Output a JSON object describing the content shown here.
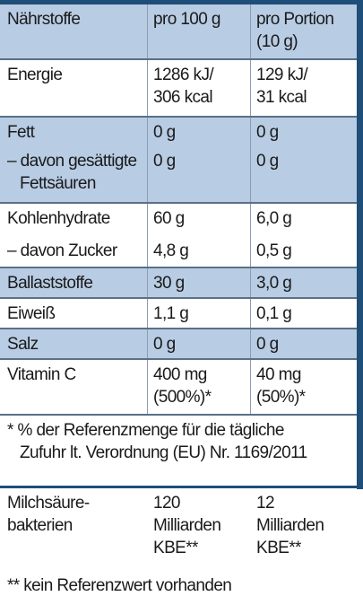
{
  "header": {
    "col1": "Nährstoffe",
    "col2": "pro 100 g",
    "col3_line1": "pro Portion",
    "col3_line2": "(10 g)"
  },
  "rows": [
    {
      "label": "Energie",
      "v100_1": "1286 kJ/",
      "v100_2": "306 kcal",
      "vp_1": "129 kJ/",
      "vp_2": "31 kcal"
    },
    {
      "label": "Fett",
      "v100": "0 g",
      "vp": "0 g"
    },
    {
      "label_1": "– davon gesättigte",
      "label_2": "Fettsäuren",
      "v100": "0 g",
      "vp": "0 g"
    },
    {
      "label": "Kohlenhydrate",
      "v100": "60 g",
      "vp": "6,0 g"
    },
    {
      "label": "– davon Zucker",
      "v100": "4,8 g",
      "vp": "0,5 g"
    },
    {
      "label": "Ballaststoffe",
      "v100": "30 g",
      "vp": "3,0 g"
    },
    {
      "label": "Eiweiß",
      "v100": "1,1 g",
      "vp": "0,1 g"
    },
    {
      "label": "Salz",
      "v100": "0 g",
      "vp": "0 g"
    },
    {
      "label": "Vitamin C",
      "v100_1": "400 mg",
      "v100_2": "(500%)*",
      "vp_1": "40 mg",
      "vp_2": "(50%)*"
    }
  ],
  "footnote1": {
    "line1": "* % der Referenzmenge für die tägliche",
    "line2": "Zufuhr lt. Verordnung (EU) Nr. 1169/2011"
  },
  "bacteria": {
    "label_1": "Milchsäure-",
    "label_2": "bakterien",
    "v100_1": "120",
    "v100_2": "Milliarden",
    "v100_3": "KBE**",
    "vp_1": "12",
    "vp_2": "Milliarden",
    "vp_3": "KBE**"
  },
  "footnote2": "** kein Referenzwert vorhanden",
  "colors": {
    "shade": "#b8cce4",
    "border": "#1f4e79"
  }
}
